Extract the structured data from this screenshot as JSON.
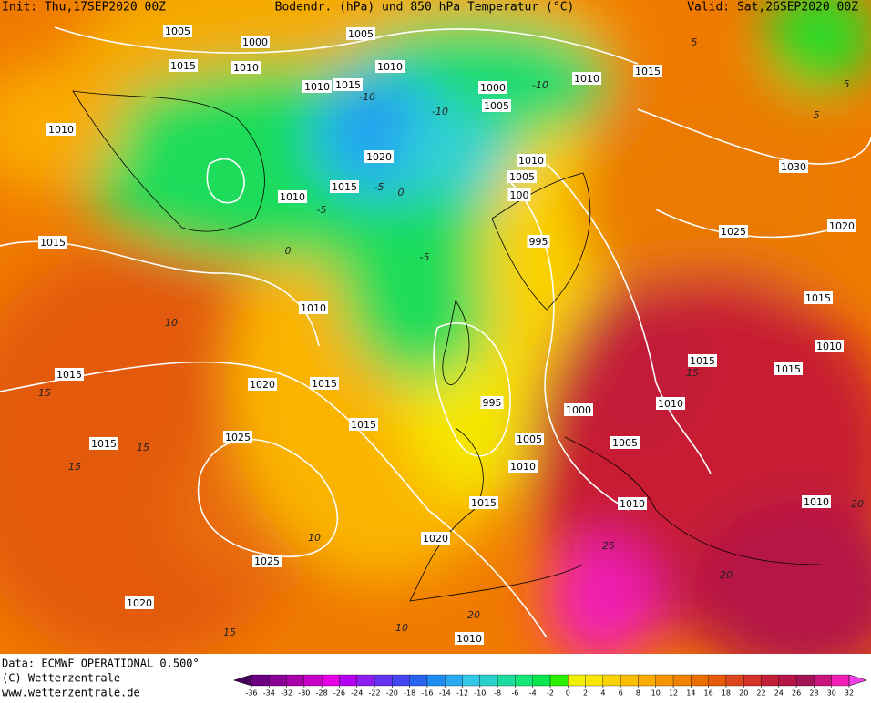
{
  "header": {
    "init": "Init: Thu,17SEP2020 00Z",
    "title": "Bodendr. (hPa) und 850 hPa Temperatur (°C)",
    "valid": "Valid: Sat,26SEP2020 00Z"
  },
  "footer": {
    "data": "Data: ECMWF OPERATIONAL 0.500°",
    "copyright": "(C) Wetterzentrale",
    "url": "www.wetterzentrale.de"
  },
  "colorbar": {
    "ticks": [
      -36,
      -34,
      -32,
      -30,
      -28,
      -26,
      -24,
      -22,
      -20,
      -18,
      -16,
      -14,
      -12,
      -10,
      -8,
      -6,
      -4,
      -2,
      0,
      2,
      4,
      6,
      8,
      10,
      12,
      14,
      16,
      18,
      20,
      22,
      24,
      26,
      28,
      30,
      32
    ],
    "colors": [
      "#46005a",
      "#6a0080",
      "#8a0096",
      "#a800a8",
      "#c800c8",
      "#e600e6",
      "#b400f0",
      "#8c1ef0",
      "#6432f0",
      "#4646f0",
      "#2864f0",
      "#1e8cf0",
      "#28aaf0",
      "#32c8e6",
      "#28d2c8",
      "#1edca0",
      "#14e678",
      "#0ae650",
      "#28f000",
      "#f0f000",
      "#fae600",
      "#fad200",
      "#fabe00",
      "#faaa00",
      "#f59600",
      "#f08200",
      "#eb6e00",
      "#e65a0a",
      "#dc461e",
      "#d23228",
      "#c31e37",
      "#b41446",
      "#a01455",
      "#c8147d",
      "#f01eb4",
      "#f040e6"
    ]
  },
  "isobar_labels": [
    "1005",
    "1000",
    "1005",
    "1015",
    "1010",
    "1010",
    "1015",
    "1010",
    "1000",
    "1010",
    "1015",
    "1005",
    "1010",
    "1030",
    "1020",
    "1010",
    "1005",
    "1010",
    "1015",
    "100",
    "1025",
    "1020",
    "1015",
    "995",
    "1015",
    "1010",
    "1010",
    "1015",
    "1015",
    "1015",
    "1020",
    "1015",
    "1010",
    "995",
    "1000",
    "1015",
    "1015",
    "1025",
    "1005",
    "1005",
    "1010",
    "1015",
    "1010",
    "1010",
    "1020",
    "1025",
    "1020",
    "1010"
  ],
  "temp_labels": [
    "-10",
    "-10",
    "-10",
    "-5",
    "0",
    "-5",
    "0",
    "-5",
    "5",
    "10",
    "15",
    "15",
    "15",
    "10",
    "15",
    "10",
    "20",
    "25",
    "20",
    "20",
    "15",
    "5",
    "5"
  ]
}
